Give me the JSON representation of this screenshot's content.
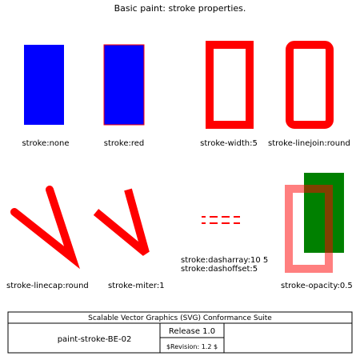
{
  "title": "Basic paint: stroke properties.",
  "colors": {
    "blue": "#0000ff",
    "red": "#ff0000",
    "green": "#008000",
    "black": "#000000",
    "white": "#ffffff"
  },
  "examples": [
    {
      "id": "stroke-none",
      "caption_lines": [
        "stroke:none"
      ]
    },
    {
      "id": "stroke-red",
      "caption_lines": [
        "stroke:red"
      ]
    },
    {
      "id": "stroke-width",
      "caption_lines": [
        "stroke-width:5"
      ]
    },
    {
      "id": "stroke-linejoin",
      "caption_lines": [
        "stroke-linejoin:round"
      ]
    },
    {
      "id": "stroke-linecap",
      "caption_lines": [
        "stroke-linecap:round"
      ]
    },
    {
      "id": "stroke-miter",
      "caption_lines": [
        "stroke-miter:1"
      ]
    },
    {
      "id": "stroke-dasharray",
      "caption_lines": [
        "stroke:dasharray:10 5",
        "stroke:dashoffset:5"
      ]
    },
    {
      "id": "stroke-opacity",
      "caption_lines": [
        "stroke-opacity:0.5"
      ]
    }
  ],
  "values": {
    "stroke_width": 5,
    "dasharray": [
      10,
      5
    ],
    "dashoffset": 5,
    "miter": 1,
    "opacity": 0.5
  },
  "footer": {
    "suite": "Scalable Vector Graphics (SVG) Conformance Suite",
    "test_name": "paint-stroke-BE-02",
    "release": "Release 1.0",
    "revision": "$Revision: 1.2 $"
  }
}
